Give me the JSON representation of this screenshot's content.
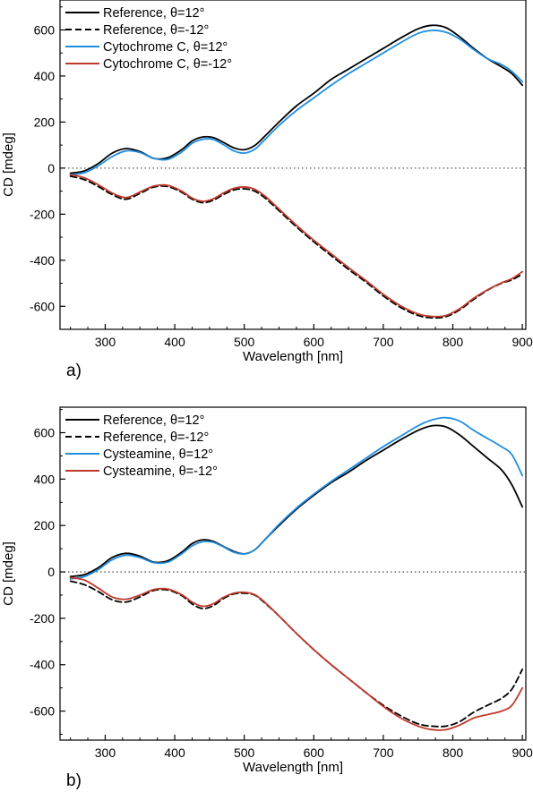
{
  "chart_data": [
    {
      "type": "line",
      "panel_label": "a)",
      "xlabel": "Wavelength [nm]",
      "ylabel": "CD [mdeg]",
      "xlim": [
        235,
        905
      ],
      "ylim": [
        -700,
        730
      ],
      "xticks": [
        300,
        400,
        500,
        600,
        700,
        800,
        900
      ],
      "yticks": [
        -600,
        -400,
        -200,
        0,
        200,
        400,
        600
      ],
      "zero_line": "dotted",
      "legend_position": "top-left",
      "series": [
        {
          "name": "Reference, θ=12°",
          "color": "#000000",
          "dash": "solid",
          "x": [
            250,
            270,
            290,
            310,
            330,
            350,
            370,
            390,
            410,
            425,
            440,
            455,
            470,
            485,
            500,
            515,
            530,
            550,
            575,
            600,
            625,
            650,
            675,
            700,
            725,
            750,
            770,
            790,
            810,
            830,
            850,
            870,
            885,
            900
          ],
          "y": [
            -22,
            -12,
            20,
            65,
            85,
            72,
            42,
            45,
            80,
            118,
            135,
            133,
            112,
            88,
            80,
            98,
            140,
            200,
            270,
            325,
            385,
            430,
            475,
            520,
            565,
            605,
            620,
            610,
            570,
            520,
            475,
            440,
            410,
            360
          ]
        },
        {
          "name": "Reference, θ=-12°",
          "color": "#000000",
          "dash": "dashed",
          "x": [
            250,
            270,
            290,
            310,
            330,
            350,
            370,
            390,
            410,
            425,
            440,
            455,
            470,
            485,
            500,
            515,
            530,
            550,
            575,
            600,
            625,
            650,
            675,
            700,
            725,
            750,
            770,
            790,
            810,
            830,
            850,
            870,
            885,
            900
          ],
          "y": [
            -35,
            -50,
            -80,
            -115,
            -135,
            -110,
            -82,
            -80,
            -105,
            -135,
            -150,
            -140,
            -115,
            -95,
            -90,
            -100,
            -130,
            -185,
            -255,
            -320,
            -380,
            -440,
            -495,
            -555,
            -605,
            -640,
            -650,
            -645,
            -615,
            -570,
            -530,
            -500,
            -485,
            -460
          ]
        },
        {
          "name": "Cytochrome C, θ=12°",
          "color": "#1f8de0",
          "dash": "solid",
          "x": [
            250,
            270,
            290,
            310,
            330,
            350,
            370,
            390,
            410,
            425,
            440,
            455,
            470,
            485,
            500,
            515,
            530,
            550,
            575,
            600,
            625,
            650,
            675,
            700,
            725,
            750,
            770,
            790,
            810,
            830,
            850,
            870,
            885,
            900
          ],
          "y": [
            -28,
            -20,
            10,
            50,
            75,
            68,
            42,
            38,
            70,
            108,
            125,
            125,
            102,
            75,
            65,
            82,
            125,
            185,
            250,
            305,
            360,
            410,
            455,
            500,
            545,
            585,
            598,
            590,
            560,
            515,
            475,
            450,
            420,
            375
          ]
        },
        {
          "name": "Cytochrome C, θ=-12°",
          "color": "#c0392b",
          "dash": "solid",
          "x": [
            250,
            270,
            290,
            310,
            330,
            350,
            370,
            390,
            410,
            425,
            440,
            455,
            470,
            485,
            500,
            515,
            530,
            550,
            575,
            600,
            625,
            650,
            675,
            700,
            725,
            750,
            770,
            790,
            810,
            830,
            850,
            870,
            885,
            900
          ],
          "y": [
            -28,
            -42,
            -72,
            -108,
            -128,
            -104,
            -78,
            -75,
            -100,
            -130,
            -144,
            -134,
            -108,
            -88,
            -82,
            -92,
            -122,
            -178,
            -248,
            -313,
            -372,
            -432,
            -488,
            -548,
            -598,
            -633,
            -644,
            -640,
            -610,
            -565,
            -528,
            -498,
            -480,
            -450
          ]
        }
      ]
    },
    {
      "type": "line",
      "panel_label": "b)",
      "xlabel": "Wavelength [nm]",
      "ylabel": "CD [mdeg]",
      "xlim": [
        235,
        905
      ],
      "ylim": [
        -725,
        710
      ],
      "xticks": [
        300,
        400,
        500,
        600,
        700,
        800,
        900
      ],
      "yticks": [
        -600,
        -400,
        -200,
        0,
        200,
        400,
        600
      ],
      "zero_line": "dotted",
      "legend_position": "top-left",
      "series": [
        {
          "name": "Reference, θ=12°",
          "color": "#000000",
          "dash": "solid",
          "x": [
            250,
            270,
            290,
            310,
            330,
            350,
            370,
            390,
            410,
            425,
            440,
            455,
            470,
            485,
            500,
            515,
            530,
            550,
            575,
            600,
            625,
            650,
            675,
            700,
            725,
            750,
            770,
            790,
            810,
            830,
            850,
            870,
            885,
            900
          ],
          "y": [
            -20,
            -12,
            18,
            62,
            80,
            68,
            42,
            48,
            85,
            122,
            138,
            132,
            110,
            88,
            78,
            95,
            140,
            200,
            270,
            330,
            385,
            430,
            480,
            525,
            570,
            610,
            630,
            625,
            590,
            540,
            490,
            440,
            375,
            280
          ]
        },
        {
          "name": "Reference, θ=-12°",
          "color": "#000000",
          "dash": "dashed",
          "x": [
            250,
            270,
            290,
            310,
            330,
            350,
            370,
            390,
            410,
            425,
            440,
            455,
            470,
            485,
            500,
            515,
            530,
            550,
            575,
            600,
            625,
            650,
            675,
            700,
            725,
            750,
            770,
            790,
            810,
            830,
            850,
            870,
            885,
            900
          ],
          "y": [
            -40,
            -55,
            -85,
            -120,
            -130,
            -108,
            -80,
            -78,
            -102,
            -138,
            -158,
            -146,
            -115,
            -95,
            -92,
            -100,
            -135,
            -190,
            -265,
            -335,
            -400,
            -460,
            -520,
            -575,
            -620,
            -655,
            -665,
            -665,
            -645,
            -605,
            -575,
            -545,
            -505,
            -420
          ]
        },
        {
          "name": "Cysteamine, θ=12°",
          "color": "#1f8de0",
          "dash": "solid",
          "x": [
            250,
            270,
            290,
            310,
            330,
            350,
            370,
            390,
            410,
            425,
            440,
            455,
            470,
            485,
            500,
            515,
            530,
            550,
            575,
            600,
            625,
            650,
            675,
            700,
            725,
            750,
            770,
            790,
            810,
            830,
            850,
            870,
            885,
            900
          ],
          "y": [
            -30,
            -20,
            10,
            52,
            72,
            62,
            40,
            42,
            78,
            112,
            130,
            128,
            108,
            85,
            78,
            95,
            140,
            205,
            275,
            335,
            390,
            440,
            490,
            540,
            585,
            630,
            655,
            665,
            650,
            610,
            575,
            540,
            505,
            415
          ]
        },
        {
          "name": "Cysteamine, θ=-12°",
          "color": "#c0392b",
          "dash": "solid",
          "x": [
            250,
            270,
            290,
            310,
            330,
            350,
            370,
            390,
            410,
            425,
            440,
            455,
            470,
            485,
            500,
            515,
            530,
            550,
            575,
            600,
            625,
            650,
            675,
            700,
            725,
            750,
            770,
            790,
            810,
            830,
            850,
            870,
            885,
            900
          ],
          "y": [
            -25,
            -35,
            -70,
            -108,
            -118,
            -100,
            -76,
            -74,
            -98,
            -130,
            -148,
            -138,
            -110,
            -92,
            -88,
            -98,
            -132,
            -190,
            -265,
            -335,
            -400,
            -460,
            -520,
            -580,
            -630,
            -665,
            -680,
            -680,
            -660,
            -630,
            -615,
            -600,
            -575,
            -500
          ]
        }
      ]
    }
  ]
}
